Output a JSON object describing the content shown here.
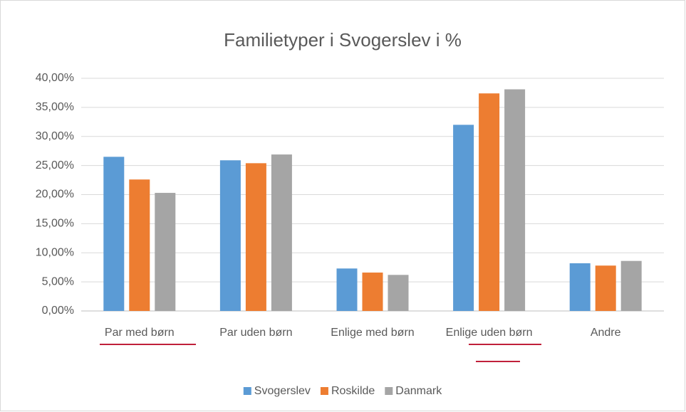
{
  "chart_data": {
    "type": "bar",
    "title": "Familietyper  i Svogerslev i %",
    "categories": [
      "Par med børn",
      "Par uden børn",
      "Enlige med børn",
      "Enlige uden børn",
      "Andre"
    ],
    "series": [
      {
        "name": "Svogerslev",
        "color": "#5b9bd5",
        "values": [
          26.5,
          25.9,
          7.3,
          32.0,
          8.2
        ]
      },
      {
        "name": "Roskilde",
        "color": "#ed7d31",
        "values": [
          22.6,
          25.4,
          6.6,
          37.4,
          7.8
        ]
      },
      {
        "name": "Danmark",
        "color": "#a5a5a5",
        "values": [
          20.3,
          26.9,
          6.2,
          38.1,
          8.6
        ]
      }
    ],
    "ylim": [
      0,
      40
    ],
    "yticks": [
      {
        "value": 0,
        "label": "0,00%"
      },
      {
        "value": 5,
        "label": "5,00%"
      },
      {
        "value": 10,
        "label": "10,00%"
      },
      {
        "value": 15,
        "label": "15,00%"
      },
      {
        "value": 20,
        "label": "20,00%"
      },
      {
        "value": 25,
        "label": "25,00%"
      },
      {
        "value": 30,
        "label": "30,00%"
      },
      {
        "value": 35,
        "label": "35,00%"
      },
      {
        "value": 40,
        "label": "40,00%"
      }
    ],
    "grid": true,
    "legend": "bottom"
  }
}
